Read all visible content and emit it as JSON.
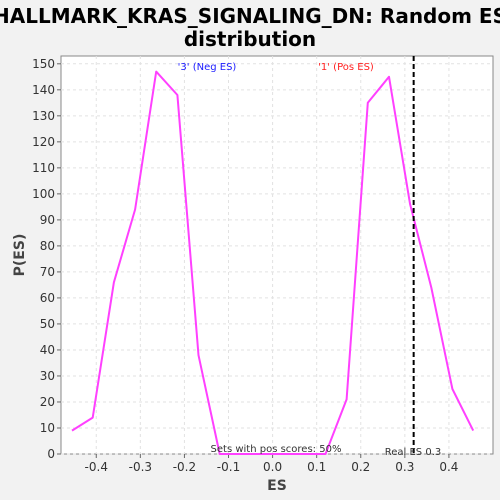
{
  "chart_data": {
    "type": "line",
    "title_line1": "HALLMARK_KRAS_SIGNALING_DN: Random ES",
    "title_line2": "distribution",
    "xlabel": "ES",
    "ylabel": "P(ES)",
    "xlim": [
      -0.48,
      0.5
    ],
    "ylim": [
      0,
      153
    ],
    "x_ticks": [
      -0.4,
      -0.3,
      -0.2,
      -0.1,
      0.0,
      0.1,
      0.2,
      0.3,
      0.4
    ],
    "x_tick_labels": [
      "-0.4",
      "-0.3",
      "-0.2",
      "-0.1",
      "0.0",
      "0.1",
      "0.2",
      "0.3",
      "0.4"
    ],
    "y_ticks": [
      0,
      10,
      20,
      30,
      40,
      50,
      60,
      70,
      80,
      90,
      100,
      110,
      120,
      130,
      140,
      150
    ],
    "y_tick_labels": [
      "0",
      "10",
      "20",
      "30",
      "40",
      "50",
      "60",
      "70",
      "80",
      "90",
      "100",
      "110",
      "120",
      "130",
      "140",
      "150"
    ],
    "grid": true,
    "series": [
      {
        "color": "#ff40ff",
        "x": [
          -0.455,
          -0.408,
          -0.36,
          -0.312,
          -0.264,
          -0.216,
          -0.168,
          -0.12,
          -0.072,
          -0.024,
          0.024,
          0.072,
          0.12,
          0.168,
          0.216,
          0.264,
          0.312,
          0.36,
          0.408,
          0.455
        ],
        "y": [
          9,
          14,
          66,
          94,
          147,
          138,
          38,
          0,
          0,
          0,
          0,
          0,
          0,
          21,
          135,
          145,
          96,
          64,
          25,
          9
        ]
      }
    ],
    "real_es": 0.32,
    "annotations": {
      "neg_label": "'3' (Neg ES)",
      "pos_label": "'1' (Pos ES)",
      "pos_scores": "Sets with pos scores: 50%",
      "real_es_label": "Real ES 0.3"
    }
  }
}
